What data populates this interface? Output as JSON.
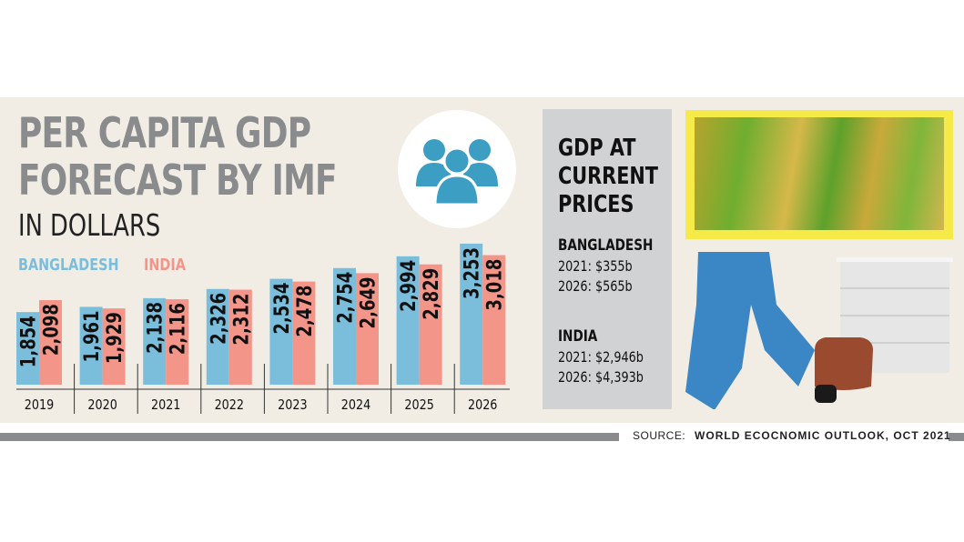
{
  "title_line1": "PER CAPITA GDP",
  "title_line2": "FORECAST BY IMF",
  "subtitle": "IN DOLLARS",
  "icon": "people-group-icon",
  "chart_data": {
    "type": "bar",
    "title": "PER CAPITA GDP FORECAST BY IMF",
    "ylabel": "IN DOLLARS",
    "categories": [
      "2019",
      "2020",
      "2021",
      "2022",
      "2023",
      "2024",
      "2025",
      "2026"
    ],
    "series": [
      {
        "name": "BANGLADESH",
        "color": "#7bbedc",
        "values": [
          1854,
          1961,
          2138,
          2326,
          2534,
          2754,
          2994,
          3253
        ],
        "labels": [
          "1,854",
          "1,961",
          "2,138",
          "2,326",
          "2,534",
          "2,754",
          "2,994",
          "3,253"
        ]
      },
      {
        "name": "INDIA",
        "color": "#f4958a",
        "values": [
          2098,
          1929,
          2116,
          2312,
          2478,
          2649,
          2829,
          3018
        ],
        "labels": [
          "2,098",
          "1,929",
          "2,116",
          "2,312",
          "2,478",
          "2,649",
          "2,829",
          "3,018"
        ]
      }
    ],
    "ylim": [
      370,
      3400
    ],
    "grid": false,
    "legend": "top-left"
  },
  "panel": {
    "title_lines": [
      "GDP AT",
      "CURRENT",
      "PRICES"
    ],
    "bangladesh": {
      "label": "BANGLADESH",
      "lines": [
        "2021: $355b",
        "2026: $565b"
      ]
    },
    "india": {
      "label": "INDIA",
      "lines": [
        "2021: $2,946b",
        "2026: $4,393b"
      ]
    }
  },
  "source": {
    "label": "SOURCE:",
    "text": "WORLD ECOCNOMIC OUTLOOK, OCT 2021"
  }
}
